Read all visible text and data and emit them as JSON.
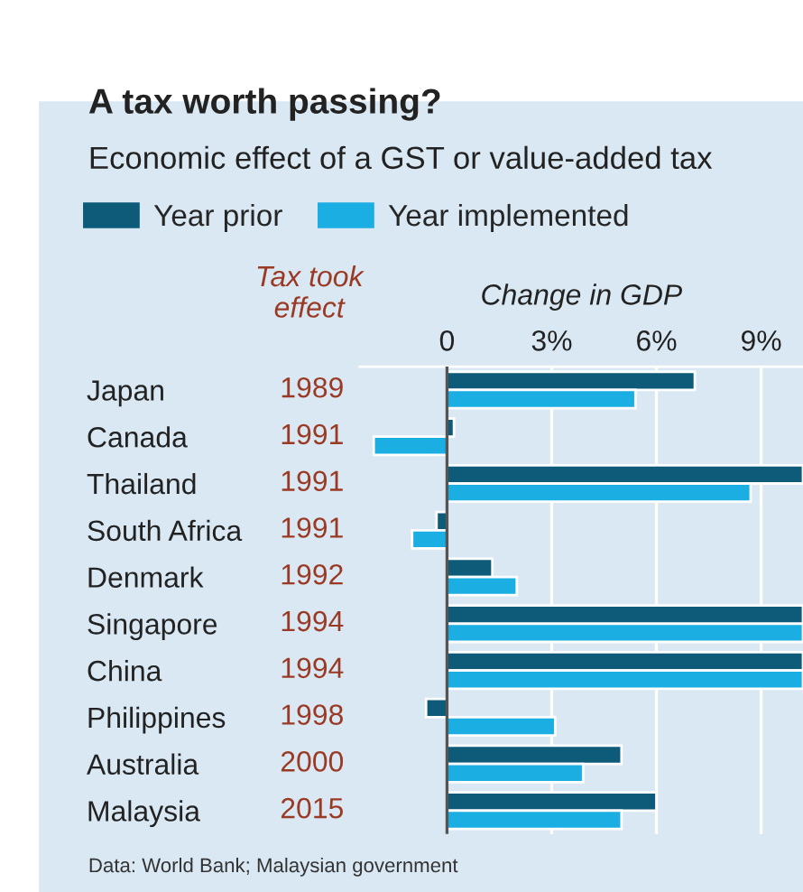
{
  "chart_data": {
    "type": "bar",
    "orientation": "horizontal",
    "title": "A tax worth passing?",
    "subtitle": "Economic effect of a GST or value-added tax",
    "xlabel": "Change in GDP",
    "categories": [
      "Japan",
      "Canada",
      "Thailand",
      "South Africa",
      "Denmark",
      "Singapore",
      "China",
      "Philippines",
      "Australia",
      "Malaysia"
    ],
    "series": [
      {
        "name": "Year prior",
        "color": "#0d5b78",
        "values": [
          7.1,
          0.2,
          10.2,
          -0.3,
          1.3,
          10.2,
          10.2,
          -0.6,
          5.0,
          6.0
        ]
      },
      {
        "name": "Year implemented",
        "color": "#1aaee3",
        "values": [
          5.4,
          -2.1,
          8.7,
          -1.0,
          2.0,
          10.2,
          10.2,
          3.1,
          3.9,
          5.0
        ]
      }
    ],
    "xlim": [
      -2.5,
      10.2
    ],
    "xticks": [
      0,
      {
        "value": 3,
        "label": "3%"
      },
      {
        "value": 6,
        "label": "6%"
      },
      {
        "value": 9,
        "label": "9%"
      }
    ],
    "grid": "x",
    "legend": "top left",
    "ref_lines": [
      {
        "axis": "x",
        "value": 0,
        "color": "#555555"
      }
    ],
    "annotations": [
      "Tax took effect",
      "1989",
      "1991",
      "1991",
      "1991",
      "1992",
      "1994",
      "1994",
      "1998",
      "2000",
      "2015",
      "Data: World Bank; Malaysian government"
    ]
  }
}
